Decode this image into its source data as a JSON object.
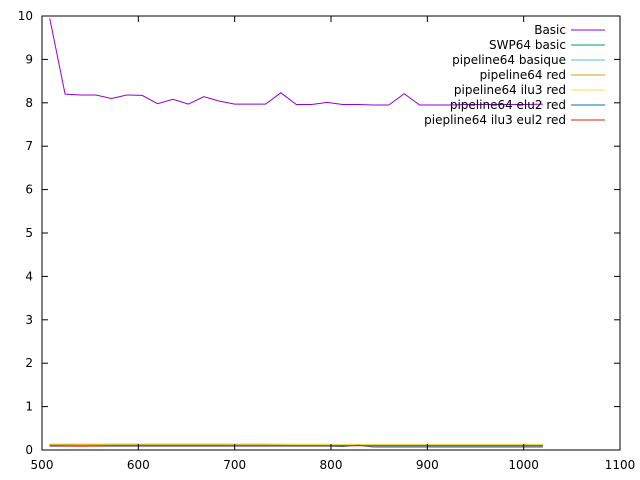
{
  "chart_data": {
    "type": "line",
    "xlim": [
      500,
      1100
    ],
    "ylim": [
      0,
      10
    ],
    "x_ticks": [
      500,
      600,
      700,
      800,
      900,
      1000,
      1100
    ],
    "y_ticks": [
      0,
      1,
      2,
      3,
      4,
      5,
      6,
      7,
      8,
      9,
      10
    ],
    "grid": false,
    "legend_position": "top-right",
    "series": [
      {
        "name": "Basic",
        "color": "#9400d3",
        "x": [
          508,
          524,
          540,
          556,
          572,
          588,
          604,
          620,
          636,
          652,
          668,
          684,
          700,
          716,
          732,
          748,
          764,
          780,
          796,
          812,
          828,
          844,
          860,
          876,
          892,
          908,
          924,
          940,
          956,
          972,
          988,
          1004,
          1020
        ],
        "y": [
          9.95,
          8.2,
          8.18,
          8.18,
          8.1,
          8.18,
          8.17,
          7.98,
          8.08,
          7.97,
          8.14,
          8.04,
          7.97,
          7.97,
          7.97,
          8.23,
          7.96,
          7.96,
          8.01,
          7.96,
          7.96,
          7.95,
          7.95,
          8.21,
          7.95,
          7.95,
          7.95,
          7.96,
          7.96,
          7.96,
          7.96,
          7.96,
          7.97
        ]
      },
      {
        "name": "SWP64 basic",
        "color": "#009e73",
        "x": [
          508,
          540,
          572,
          604,
          636,
          668,
          700,
          732,
          764,
          796,
          828,
          860,
          892,
          924,
          956,
          988,
          1020
        ],
        "y": [
          0.13,
          0.12,
          0.12,
          0.12,
          0.12,
          0.12,
          0.11,
          0.11,
          0.11,
          0.11,
          0.11,
          0.11,
          0.11,
          0.11,
          0.11,
          0.11,
          0.11
        ]
      },
      {
        "name": "pipeline64 basique",
        "color": "#56b4e9",
        "x": [
          508,
          540,
          572,
          604,
          636,
          668,
          700,
          732,
          764,
          796,
          828,
          860,
          892,
          924,
          956,
          988,
          1020
        ],
        "y": [
          0.11,
          0.11,
          0.11,
          0.11,
          0.11,
          0.11,
          0.11,
          0.11,
          0.11,
          0.11,
          0.11,
          0.11,
          0.11,
          0.11,
          0.11,
          0.11,
          0.11
        ]
      },
      {
        "name": "pipeline64 red",
        "color": "#e69f00",
        "x": [
          508,
          540,
          572,
          604,
          636,
          668,
          700,
          732,
          764,
          796,
          828,
          860,
          892,
          924,
          956,
          988,
          1020
        ],
        "y": [
          0.12,
          0.12,
          0.13,
          0.13,
          0.13,
          0.13,
          0.13,
          0.13,
          0.13,
          0.13,
          0.12,
          0.12,
          0.12,
          0.12,
          0.12,
          0.12,
          0.12
        ]
      },
      {
        "name": "pipeline64 ilu3 red",
        "color": "#f0e442",
        "x": [
          508,
          540,
          572,
          604,
          636,
          668,
          700,
          732,
          764,
          796,
          828,
          860,
          892,
          924,
          956,
          988,
          1020
        ],
        "y": [
          0.14,
          0.14,
          0.14,
          0.14,
          0.14,
          0.14,
          0.14,
          0.14,
          0.13,
          0.13,
          0.13,
          0.13,
          0.13,
          0.13,
          0.13,
          0.13,
          0.13
        ]
      },
      {
        "name": "pipeline64 elu2 red",
        "color": "#0072b2",
        "x": [
          508,
          540,
          572,
          604,
          636,
          668,
          700,
          732,
          764,
          796,
          812,
          828,
          844,
          860,
          892,
          924,
          956,
          988,
          1020
        ],
        "y": [
          0.09,
          0.09,
          0.09,
          0.09,
          0.09,
          0.09,
          0.09,
          0.09,
          0.09,
          0.09,
          0.08,
          0.11,
          0.07,
          0.07,
          0.07,
          0.07,
          0.07,
          0.07,
          0.07
        ]
      },
      {
        "name": "piepline64 ilu3 eul2 red",
        "color": "#e51e10",
        "x": [
          508,
          540,
          572,
          604,
          636,
          668,
          700,
          732,
          764,
          796,
          828,
          860,
          892,
          924,
          956,
          988,
          1020
        ],
        "y": [
          0.1,
          0.09,
          0.1,
          0.1,
          0.1,
          0.1,
          0.1,
          0.1,
          0.1,
          0.1,
          0.1,
          0.1,
          0.1,
          0.1,
          0.1,
          0.1,
          0.1
        ]
      }
    ]
  }
}
